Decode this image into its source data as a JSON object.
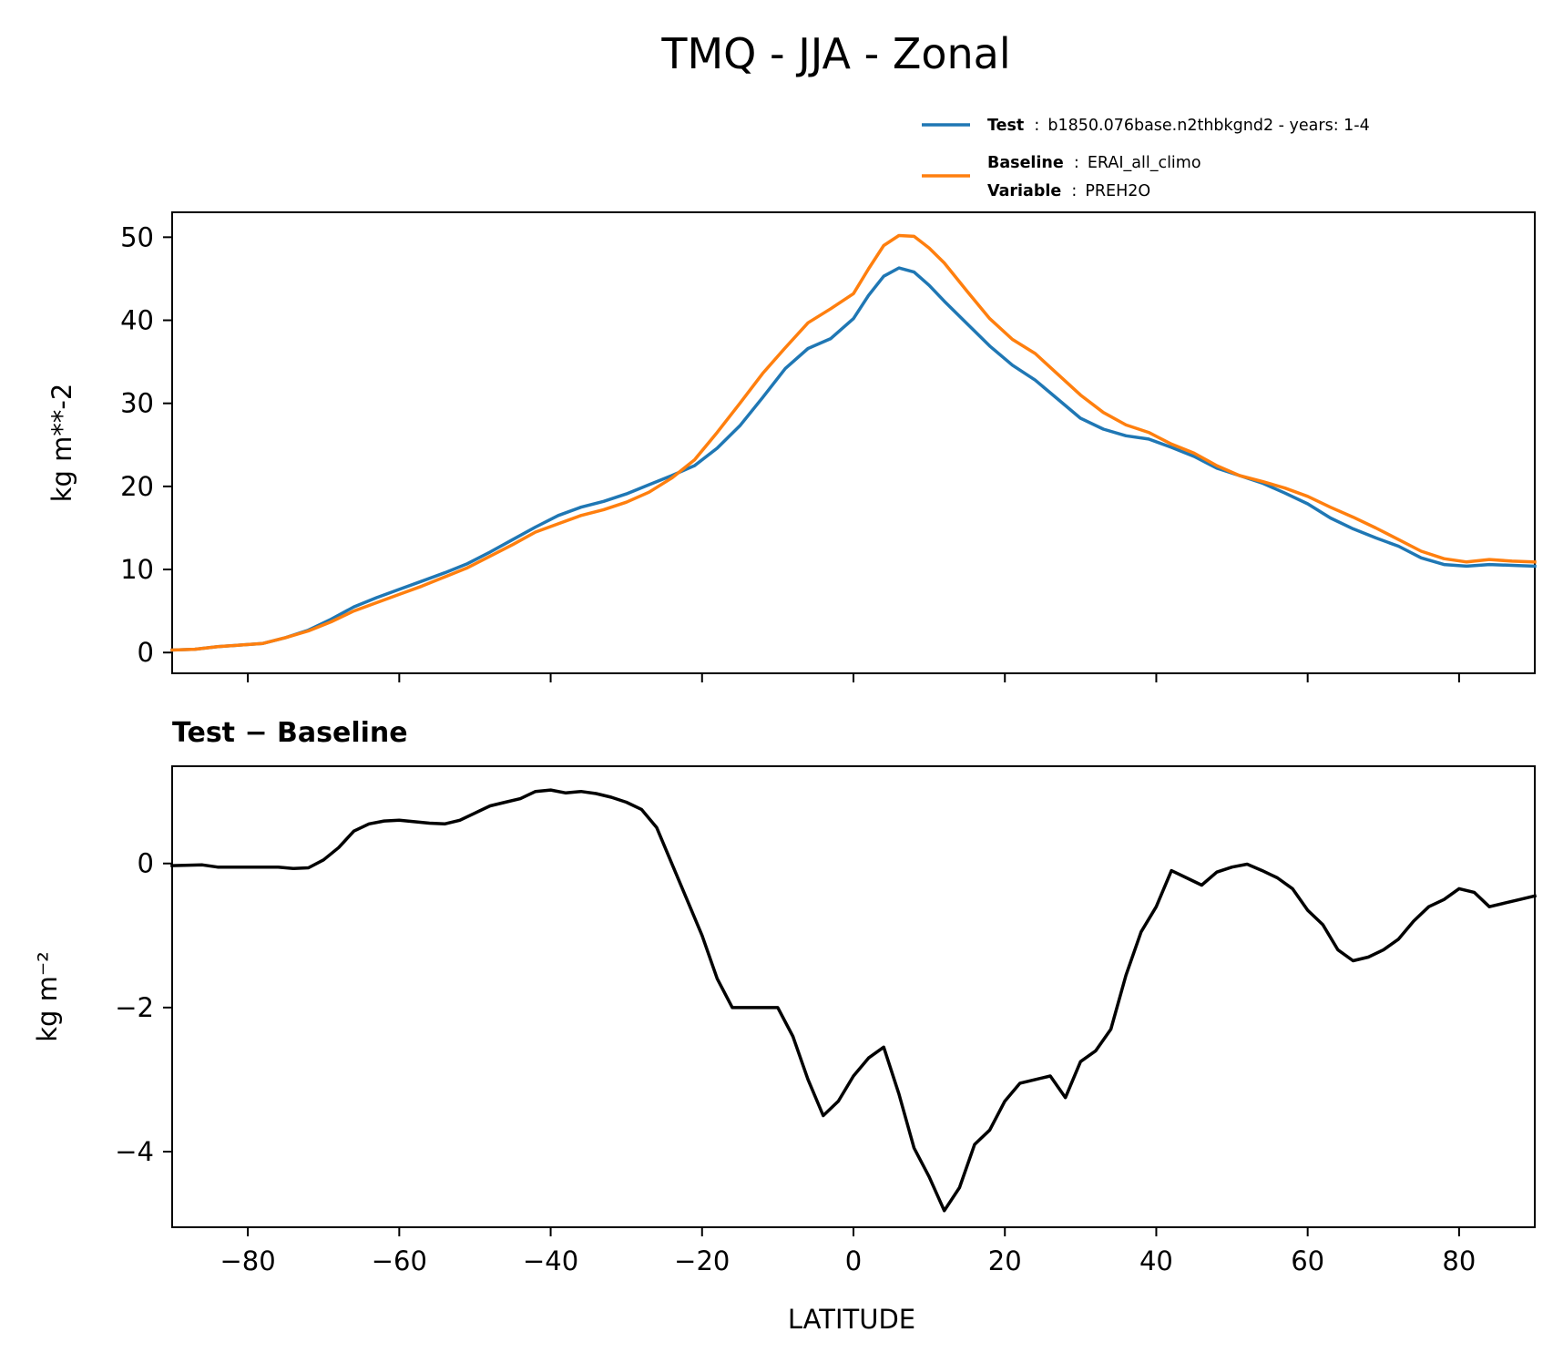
{
  "figure": {
    "title": "TMQ - JJA - Zonal"
  },
  "legend": {
    "test": {
      "bold": "Test",
      "sep": ":",
      "text": "b1850.076base.n2thbkgnd2 - years: 1-4",
      "color": "#1f77b4"
    },
    "baseline": {
      "bold": "Baseline",
      "sep": ":",
      "text": "ERAI_all_climo",
      "color": "#ff7f0e"
    },
    "variable": {
      "bold": "Variable",
      "sep": ":",
      "text": "PREH2O"
    }
  },
  "colors": {
    "test": "#1f77b4",
    "baseline": "#ff7f0e",
    "diff": "#000000"
  },
  "chart_data": [
    {
      "type": "line",
      "name": "zonal-mean",
      "xlabel": "",
      "ylabel": "kg m**-2",
      "xlim": [
        -90,
        90
      ],
      "ylim": [
        -2.5,
        53
      ],
      "xticks": [
        -80,
        -60,
        -40,
        -20,
        0,
        20,
        40,
        60,
        80
      ],
      "yticks": [
        0,
        10,
        20,
        30,
        40,
        50
      ],
      "ytick_labels": [
        "0",
        "10",
        "20",
        "30",
        "40",
        "50"
      ],
      "x": [
        -90,
        -87,
        -84,
        -81,
        -78,
        -75,
        -72,
        -69,
        -66,
        -63,
        -60,
        -57,
        -54,
        -51,
        -48,
        -45,
        -42,
        -39,
        -36,
        -33,
        -30,
        -27,
        -24,
        -21,
        -18,
        -15,
        -12,
        -9,
        -6,
        -3,
        0,
        2,
        4,
        6,
        8,
        10,
        12,
        15,
        18,
        21,
        24,
        27,
        30,
        33,
        36,
        39,
        42,
        45,
        48,
        51,
        54,
        57,
        60,
        63,
        66,
        69,
        72,
        75,
        78,
        81,
        84,
        87,
        90
      ],
      "series": [
        {
          "name": "Test",
          "values": [
            0.3,
            0.4,
            0.7,
            0.9,
            1.1,
            1.8,
            2.7,
            4.0,
            5.5,
            6.6,
            7.6,
            8.6,
            9.6,
            10.7,
            12.1,
            13.6,
            15.1,
            16.5,
            17.5,
            18.2,
            19.1,
            20.2,
            21.3,
            22.5,
            24.6,
            27.3,
            30.7,
            34.2,
            36.6,
            37.8,
            40.2,
            43.0,
            45.3,
            46.3,
            45.8,
            44.2,
            42.3,
            39.6,
            36.9,
            34.6,
            32.8,
            30.5,
            28.2,
            26.9,
            26.1,
            25.7,
            24.7,
            23.6,
            22.2,
            21.3,
            20.4,
            19.2,
            17.9,
            16.2,
            14.9,
            13.8,
            12.8,
            11.4,
            10.6,
            10.4,
            10.6,
            10.5,
            10.4
          ]
        },
        {
          "name": "Baseline",
          "values": [
            0.3,
            0.4,
            0.7,
            0.9,
            1.1,
            1.8,
            2.6,
            3.7,
            5.0,
            6.0,
            7.0,
            8.0,
            9.1,
            10.2,
            11.6,
            13.0,
            14.5,
            15.5,
            16.5,
            17.2,
            18.1,
            19.3,
            21.0,
            23.2,
            26.5,
            30.0,
            33.6,
            36.7,
            39.7,
            41.4,
            43.2,
            46.2,
            49.0,
            50.2,
            50.1,
            48.7,
            46.9,
            43.5,
            40.2,
            37.7,
            36.0,
            33.5,
            31.0,
            28.9,
            27.4,
            26.5,
            25.1,
            24.0,
            22.5,
            21.3,
            20.6,
            19.8,
            18.8,
            17.5,
            16.3,
            15.0,
            13.6,
            12.2,
            11.3,
            10.9,
            11.2,
            11.0,
            10.9
          ]
        }
      ]
    },
    {
      "type": "line",
      "name": "difference",
      "title": "Test − Baseline",
      "xlabel": "LATITUDE",
      "ylabel": "kg m⁻²",
      "xlim": [
        -90,
        90
      ],
      "ylim": [
        -5.05,
        1.35
      ],
      "xticks": [
        -80,
        -60,
        -40,
        -20,
        0,
        20,
        40,
        60,
        80
      ],
      "xtick_labels": [
        "−80",
        "−60",
        "−40",
        "−20",
        "0",
        "20",
        "40",
        "60",
        "80"
      ],
      "yticks": [
        0,
        -2,
        -4
      ],
      "ytick_labels": [
        "0",
        "−2",
        "−4"
      ],
      "x": [
        -90,
        -86,
        -84,
        -82,
        -78,
        -76,
        -74,
        -72,
        -70,
        -68,
        -66,
        -64,
        -62,
        -60,
        -58,
        -56,
        -54,
        -52,
        -50,
        -48,
        -46,
        -44,
        -42,
        -40,
        -38,
        -36,
        -34,
        -32,
        -30,
        -28,
        -26,
        -24,
        -22,
        -20,
        -18,
        -16,
        -14,
        -12,
        -10,
        -8,
        -6,
        -4,
        -2,
        0,
        2,
        4,
        6,
        8,
        10,
        12,
        14,
        16,
        18,
        20,
        22,
        24,
        26,
        28,
        30,
        32,
        34,
        36,
        38,
        40,
        42,
        44,
        46,
        48,
        50,
        52,
        54,
        56,
        58,
        60,
        62,
        64,
        66,
        68,
        70,
        72,
        74,
        76,
        78,
        80,
        82,
        84,
        86,
        88,
        90
      ],
      "series": [
        {
          "name": "Test - Baseline",
          "values": [
            -0.03,
            -0.02,
            -0.05,
            -0.05,
            -0.05,
            -0.05,
            -0.07,
            -0.06,
            0.05,
            0.22,
            0.45,
            0.55,
            0.59,
            0.6,
            0.58,
            0.56,
            0.55,
            0.6,
            0.7,
            0.8,
            0.85,
            0.9,
            1.0,
            1.02,
            0.98,
            1.0,
            0.97,
            0.92,
            0.85,
            0.75,
            0.5,
            0.0,
            -0.5,
            -1.0,
            -1.6,
            -2.0,
            -2.0,
            -2.0,
            -2.0,
            -2.4,
            -3.0,
            -3.5,
            -3.3,
            -2.95,
            -2.7,
            -2.55,
            -3.2,
            -3.95,
            -4.35,
            -4.82,
            -4.5,
            -3.9,
            -3.7,
            -3.3,
            -3.05,
            -3.0,
            -2.95,
            -3.25,
            -2.75,
            -2.6,
            -2.3,
            -1.55,
            -0.95,
            -0.6,
            -0.1,
            -0.2,
            -0.3,
            -0.12,
            -0.05,
            -0.01,
            -0.1,
            -0.2,
            -0.35,
            -0.65,
            -0.85,
            -1.2,
            -1.35,
            -1.3,
            -1.2,
            -1.05,
            -0.8,
            -0.6,
            -0.5,
            -0.35,
            -0.4,
            -0.6,
            -0.55,
            -0.5,
            -0.45
          ]
        }
      ]
    }
  ]
}
